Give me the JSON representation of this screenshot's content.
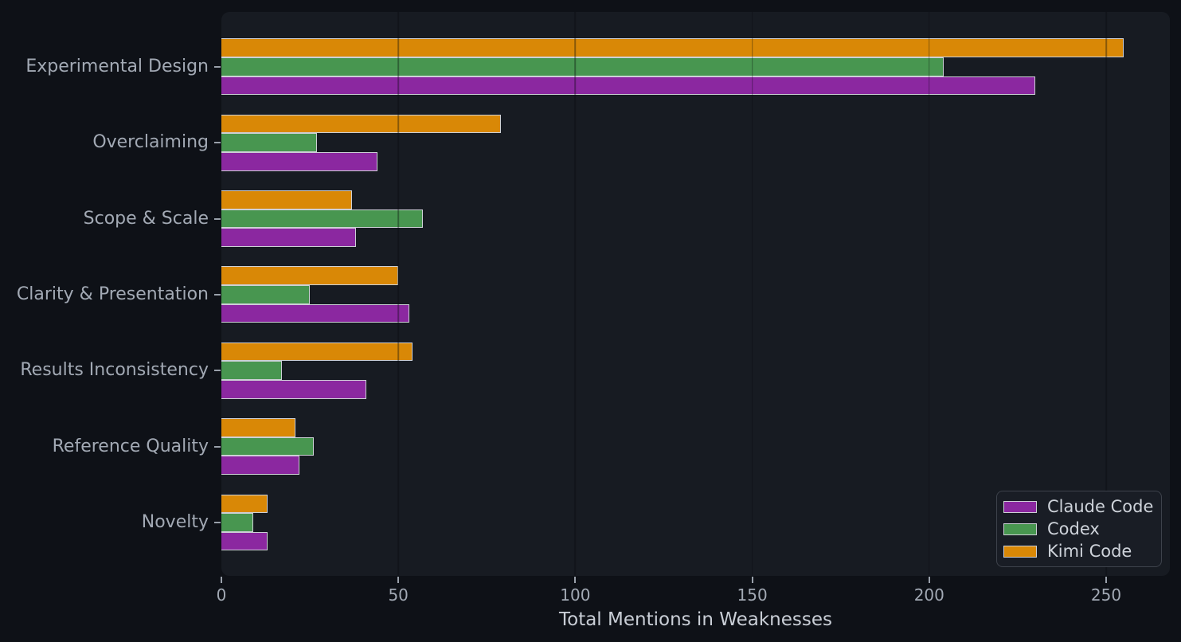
{
  "chart_data": {
    "type": "bar",
    "orientation": "horizontal",
    "title": "",
    "xlabel": "Total Mentions in Weaknesses",
    "ylabel": "",
    "categories": [
      "Experimental Design",
      "Overclaiming",
      "Scope & Scale",
      "Clarity & Presentation",
      "Results Inconsistency",
      "Reference Quality",
      "Novelty"
    ],
    "series": [
      {
        "name": "Claude Code",
        "color": "#8b28a0",
        "values": [
          230,
          44,
          38,
          53,
          41,
          22,
          13
        ]
      },
      {
        "name": "Codex",
        "color": "#489650",
        "values": [
          204,
          27,
          57,
          25,
          17,
          26,
          9
        ]
      },
      {
        "name": "Kimi Code",
        "color": "#d98806",
        "values": [
          255,
          79,
          37,
          50,
          54,
          21,
          13
        ]
      }
    ],
    "bar_order_top_to_bottom": [
      "Kimi Code",
      "Codex",
      "Claude Code"
    ],
    "x_ticks": [
      0,
      50,
      100,
      150,
      200,
      250
    ],
    "xlim": [
      0,
      268
    ],
    "grid": "vertical gridlines at x ticks, drawn above bars",
    "legend_position": "lower right",
    "legend_order": [
      "Claude Code",
      "Codex",
      "Kimi Code"
    ]
  },
  "colors": {
    "figure_bg": "#0e1117",
    "plot_bg": "#171b22",
    "bar_edge": "#cdd0d6",
    "category_text": "#a2a9b4",
    "tick_text": "#a2a9b4",
    "axis_title_text": "#c9ced6",
    "legend_text": "#ced3da",
    "legend_border": "#3d424b",
    "tick_mark": "#99a0aa"
  }
}
